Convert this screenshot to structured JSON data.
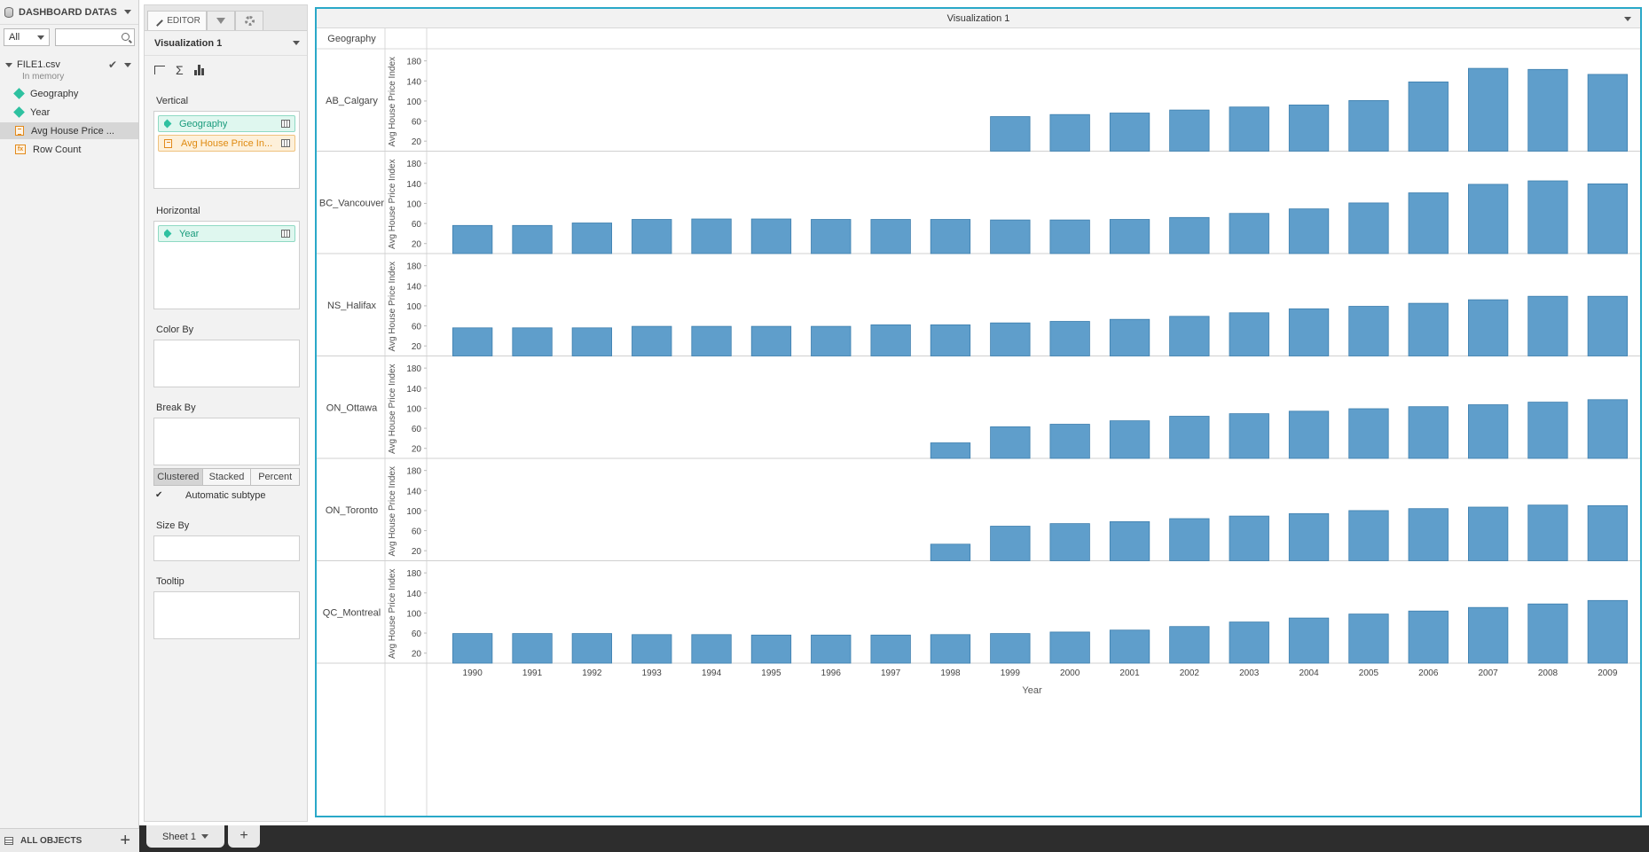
{
  "dataset_panel": {
    "title": "DASHBOARD DATAS...",
    "filter_value": "All",
    "search_placeholder": "",
    "file_name": "FILE1.csv",
    "file_status": "In memory",
    "fields": [
      {
        "label": "Geography",
        "kind": "dimension"
      },
      {
        "label": "Year",
        "kind": "dimension"
      },
      {
        "label": "Avg House Price ...",
        "kind": "measure"
      },
      {
        "label": "Row Count",
        "kind": "calculated"
      }
    ],
    "bottom_label": "ALL OBJECTS"
  },
  "editor": {
    "tab_label": "EDITOR",
    "viz_name": "Visualization 1",
    "vertical_label": "Vertical",
    "vertical_fields": [
      "Geography",
      "Avg House Price In..."
    ],
    "horizontal_label": "Horizontal",
    "horizontal_fields": [
      "Year"
    ],
    "color_by_label": "Color By",
    "break_by_label": "Break By",
    "subtypes": [
      "Clustered",
      "Stacked",
      "Percent"
    ],
    "active_subtype": "Clustered",
    "auto_subtype_label": "Automatic subtype",
    "size_by_label": "Size By",
    "tooltip_label": "Tooltip"
  },
  "viz": {
    "title": "Visualization 1"
  },
  "sheets": {
    "tab_label": "Sheet 1",
    "add_label": "+"
  },
  "colors": {
    "bar": "#5f9ecb",
    "bar_edge": "#3d7fae",
    "accent": "#2aa8c8"
  },
  "chart_data": {
    "type": "bar",
    "row_header": "Geography",
    "categories": [
      "1990",
      "1991",
      "1992",
      "1993",
      "1994",
      "1995",
      "1996",
      "1997",
      "1998",
      "1999",
      "2000",
      "2001",
      "2002",
      "2003",
      "2004",
      "2005",
      "2006",
      "2007",
      "2008",
      "2009"
    ],
    "xlabel": "Year",
    "ylabel": "Avg House Price Index",
    "yticks": [
      20,
      60,
      100,
      140,
      180
    ],
    "ylim": [
      0,
      190
    ],
    "panels": [
      {
        "name": "AB_Calgary",
        "values": [
          null,
          null,
          null,
          null,
          null,
          null,
          null,
          null,
          null,
          69,
          73,
          76,
          82,
          88,
          92,
          101,
          138,
          165,
          163,
          153
        ]
      },
      {
        "name": "BC_Vancouver",
        "values": [
          56,
          56,
          61,
          68,
          69,
          69,
          68,
          68,
          68,
          67,
          67,
          68,
          72,
          80,
          89,
          101,
          121,
          138,
          145,
          139
        ]
      },
      {
        "name": "NS_Halifax",
        "values": [
          56,
          56,
          56,
          59,
          59,
          59,
          59,
          62,
          62,
          66,
          69,
          73,
          79,
          86,
          94,
          99,
          105,
          112,
          119,
          119
        ]
      },
      {
        "name": "ON_Ottawa",
        "values": [
          null,
          null,
          null,
          null,
          null,
          null,
          null,
          null,
          31,
          63,
          68,
          75,
          84,
          89,
          94,
          99,
          103,
          107,
          112,
          117
        ]
      },
      {
        "name": "ON_Toronto",
        "values": [
          null,
          null,
          null,
          null,
          null,
          null,
          null,
          null,
          33,
          69,
          74,
          78,
          84,
          89,
          94,
          100,
          104,
          107,
          111,
          110
        ]
      },
      {
        "name": "QC_Montreal",
        "values": [
          59,
          59,
          59,
          57,
          57,
          56,
          56,
          56,
          57,
          59,
          62,
          66,
          73,
          82,
          90,
          98,
          104,
          111,
          118,
          125
        ]
      }
    ]
  }
}
